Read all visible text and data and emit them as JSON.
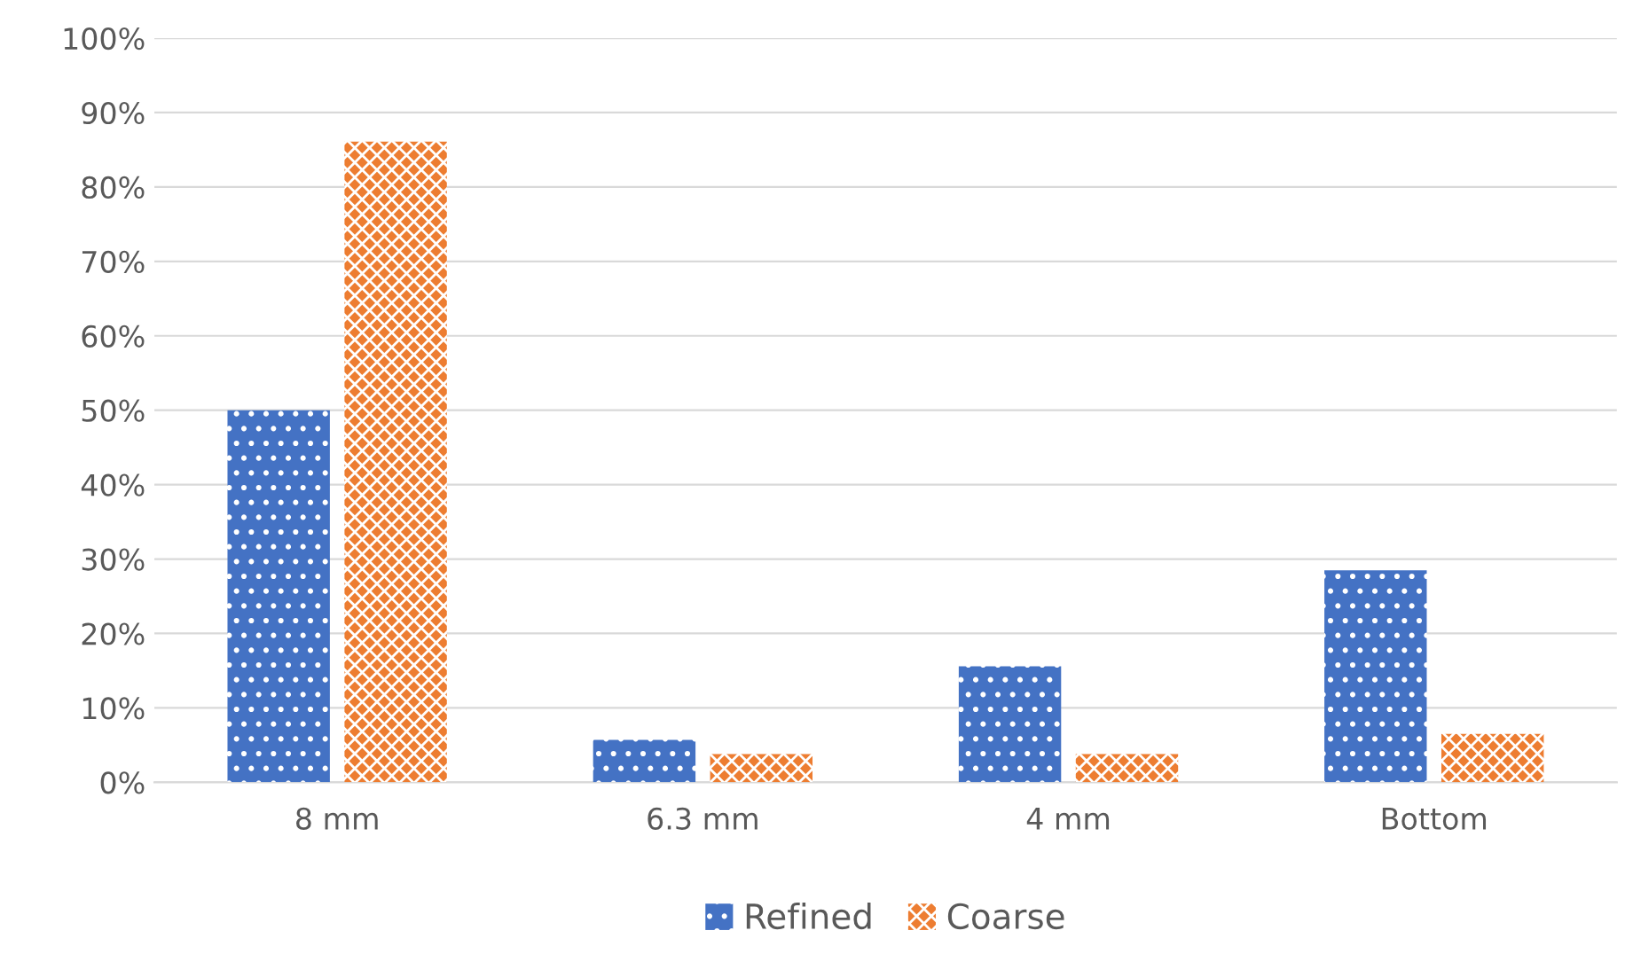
{
  "chart_data": {
    "type": "bar",
    "categories": [
      "8 mm",
      "6.3 mm",
      "4 mm",
      "Bottom"
    ],
    "series": [
      {
        "name": "Refined",
        "color": "#4472c4",
        "values": [
          50.0,
          5.7,
          15.6,
          28.5
        ]
      },
      {
        "name": "Coarse",
        "color": "#ed7d31",
        "values": [
          86.1,
          3.8,
          3.8,
          6.5
        ]
      }
    ],
    "ylim": [
      0,
      100
    ],
    "yticks": [
      {
        "value": 0,
        "label": "0%"
      },
      {
        "value": 10,
        "label": "10%"
      },
      {
        "value": 20,
        "label": "20%"
      },
      {
        "value": 30,
        "label": "30%"
      },
      {
        "value": 40,
        "label": "40%"
      },
      {
        "value": 50,
        "label": "50%"
      },
      {
        "value": 60,
        "label": "60%"
      },
      {
        "value": 70,
        "label": "70%"
      },
      {
        "value": 80,
        "label": "80%"
      },
      {
        "value": 90,
        "label": "90%"
      },
      {
        "value": 100,
        "label": "100%"
      }
    ],
    "grid": "y",
    "legend": "bottom"
  }
}
